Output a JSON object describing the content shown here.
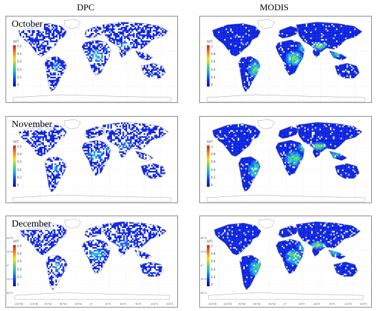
{
  "columns": {
    "left": "DPC",
    "right": "MODIS"
  },
  "rows": [
    {
      "month": "October"
    },
    {
      "month": "November"
    },
    {
      "month": "December"
    }
  ],
  "colorbar": {
    "title": "AOT",
    "dpc_ticks": [
      "0.5",
      "0.4",
      "0.3",
      "0.2",
      "0.1",
      "0"
    ],
    "modis_ticks": [
      "1",
      "0.8",
      "0.6",
      "0.4",
      "0.2",
      "0"
    ],
    "colors": [
      "#d7191c",
      "#f07c2a",
      "#f4e21d",
      "#66d36e",
      "#1aa4e0",
      "#0a3cff",
      "#0c0c8a"
    ]
  },
  "lon_labels": [
    "150°W",
    "120°W",
    "90°W",
    "60°W",
    "30°W",
    "0°",
    "30°E",
    "60°E",
    "90°E",
    "120°E",
    "150°E"
  ],
  "lat_labels": [
    "60°N",
    "30°N",
    "0°",
    "30°S",
    "60°S"
  ],
  "colors": {
    "land_base": "#1436e8",
    "coast": "#9a9a9a",
    "frame": "#8a8a8a"
  }
}
